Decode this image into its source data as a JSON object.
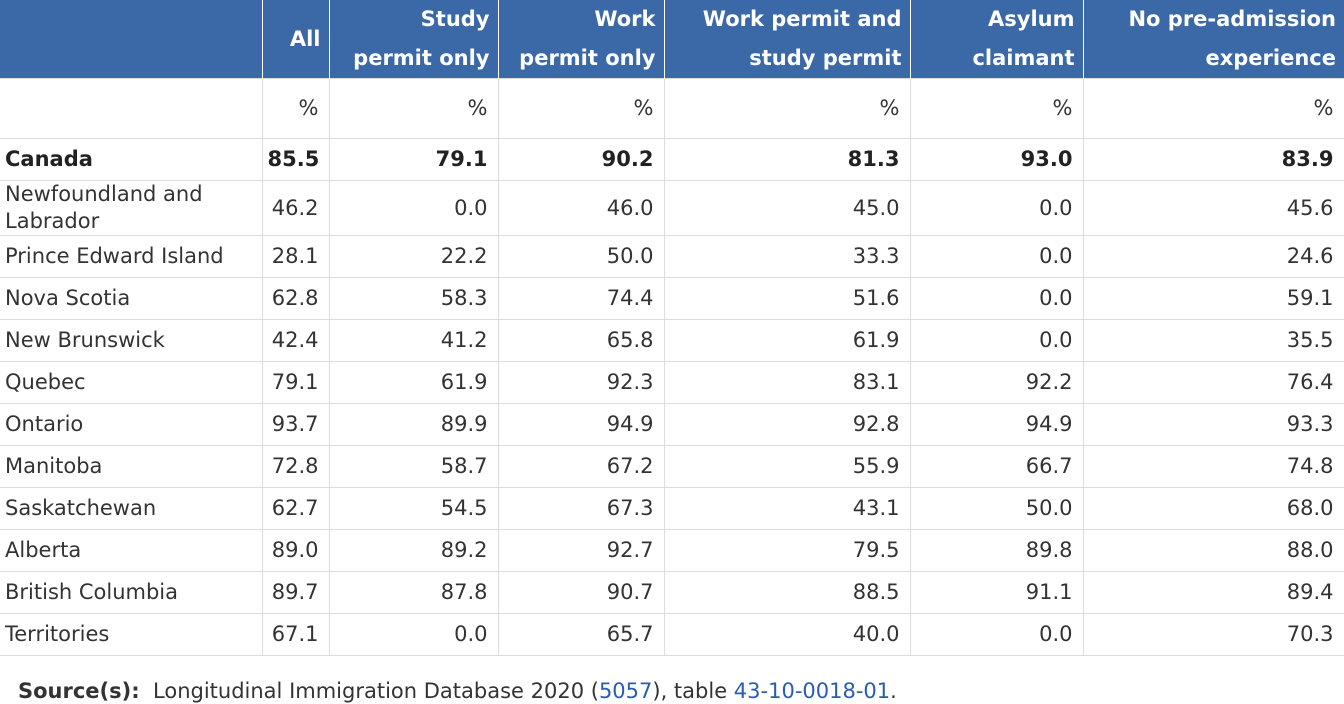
{
  "table": {
    "header": [
      [],
      [
        "All"
      ],
      [
        "Study",
        "permit only"
      ],
      [
        "Work",
        "permit only"
      ],
      [
        "Work permit and",
        "study permit"
      ],
      [
        "Asylum",
        "claimant"
      ],
      [
        "No pre-admission",
        "experience"
      ]
    ],
    "units": [
      "%",
      "%",
      "%",
      "%",
      "%",
      "%"
    ],
    "rows": [
      [
        "Canada",
        "85.5",
        "79.1",
        "90.2",
        "81.3",
        "93.0",
        "83.9"
      ],
      [
        "Newfoundland and Labrador",
        "46.2",
        "0.0",
        "46.0",
        "45.0",
        "0.0",
        "45.6"
      ],
      [
        "Prince Edward Island",
        "28.1",
        "22.2",
        "50.0",
        "33.3",
        "0.0",
        "24.6"
      ],
      [
        "Nova Scotia",
        "62.8",
        "58.3",
        "74.4",
        "51.6",
        "0.0",
        "59.1"
      ],
      [
        "New Brunswick",
        "42.4",
        "41.2",
        "65.8",
        "61.9",
        "0.0",
        "35.5"
      ],
      [
        "Quebec",
        "79.1",
        "61.9",
        "92.3",
        "83.1",
        "92.2",
        "76.4"
      ],
      [
        "Ontario",
        "93.7",
        "89.9",
        "94.9",
        "92.8",
        "94.9",
        "93.3"
      ],
      [
        "Manitoba",
        "72.8",
        "58.7",
        "67.2",
        "55.9",
        "66.7",
        "74.8"
      ],
      [
        "Saskatchewan",
        "62.7",
        "54.5",
        "67.3",
        "43.1",
        "50.0",
        "68.0"
      ],
      [
        "Alberta",
        "89.0",
        "89.2",
        "92.7",
        "79.5",
        "89.8",
        "88.0"
      ],
      [
        "British Columbia",
        "89.7",
        "87.8",
        "90.7",
        "88.5",
        "91.1",
        "89.4"
      ],
      [
        "Territories",
        "67.1",
        "0.0",
        "65.7",
        "40.0",
        "0.0",
        "70.3"
      ]
    ]
  },
  "source": {
    "label": "Source(s):",
    "text_before": "Longitudinal Immigration Database 2020 (",
    "link1": "5057",
    "text_mid": "), table ",
    "link2": "43-10-0018-01",
    "text_after": "."
  }
}
